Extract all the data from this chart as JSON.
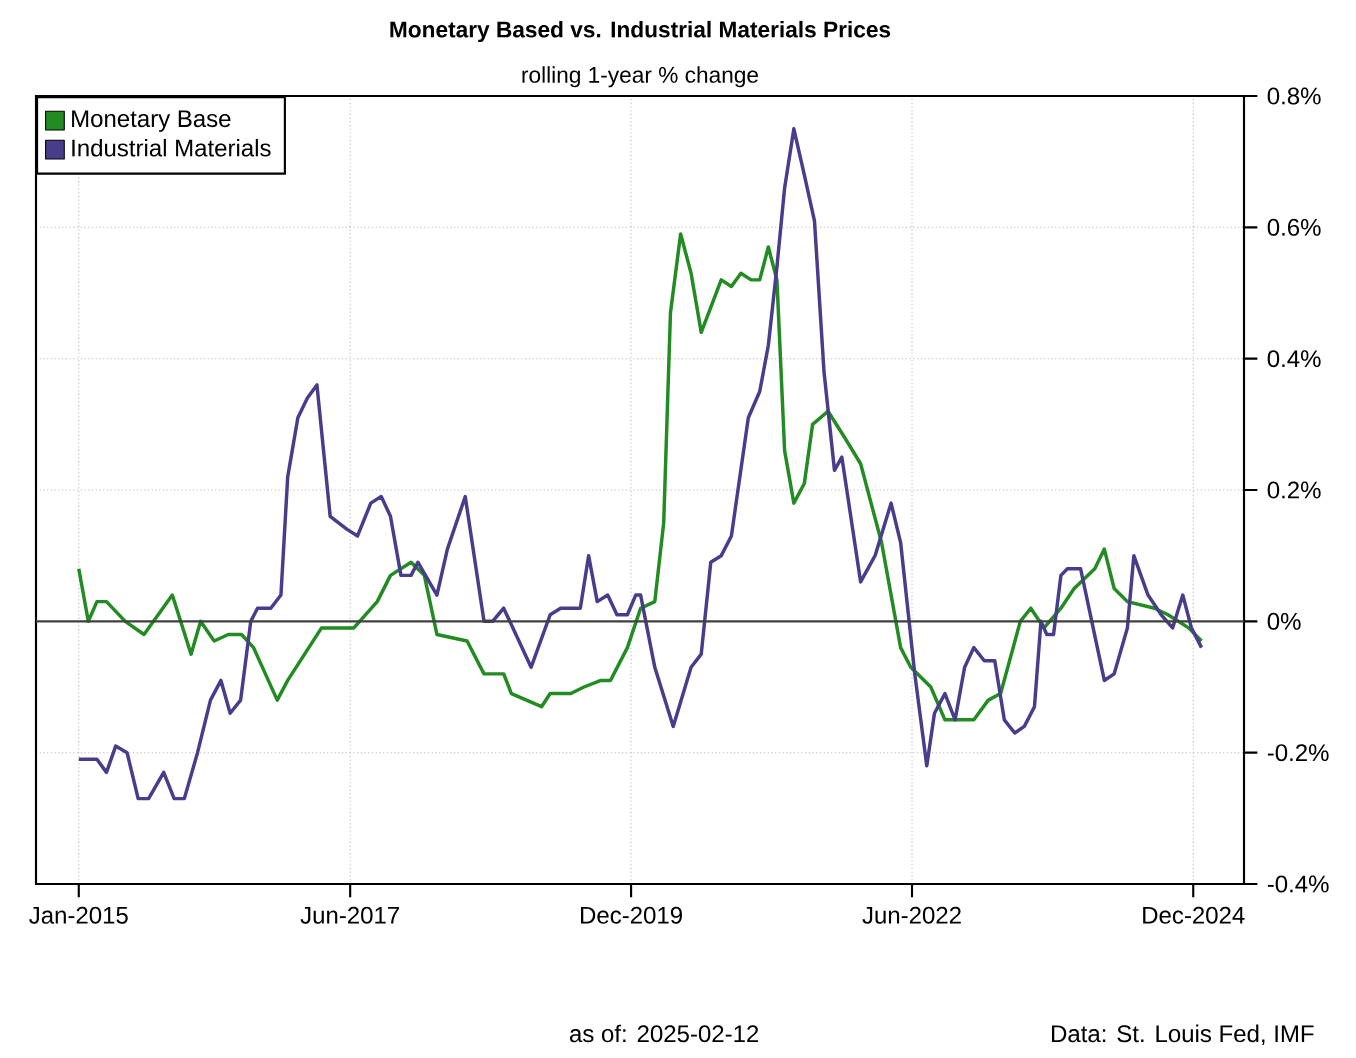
{
  "chart_data": {
    "type": "line",
    "title": "Monetary Based vs. Industrial Materials Prices",
    "subtitle": "rolling 1-year % change",
    "annotations": [
      "as of:  2025-02-12",
      "Data: St. Louis Fed, IMF"
    ],
    "xlim": [
      "2014-08-15",
      "2025-05-15"
    ],
    "xticks": [
      {
        "value": "2015-01-01",
        "label": "Jan-2015"
      },
      {
        "value": "2017-06-01",
        "label": "Jun-2017"
      },
      {
        "value": "2019-12-01",
        "label": "Dec-2019"
      },
      {
        "value": "2022-06-01",
        "label": "Jun-2022"
      },
      {
        "value": "2024-12-01",
        "label": "Dec-2024"
      }
    ],
    "ylim": [
      -0.4,
      0.8
    ],
    "yticks": [
      {
        "value": -0.4,
        "label": "-0.4%"
      },
      {
        "value": -0.2,
        "label": "-0.2%"
      },
      {
        "value": 0,
        "label": "0%"
      },
      {
        "value": 0.2,
        "label": "0.2%"
      },
      {
        "value": 0.4,
        "label": "0.4%"
      },
      {
        "value": 0.6,
        "label": "0.6%"
      },
      {
        "value": 0.8,
        "label": "0.8%"
      }
    ],
    "grid": true,
    "legend": "top left",
    "marker": "none",
    "line_style": "solid",
    "ref_lines": [
      {
        "axis": "y",
        "value": 0
      }
    ],
    "series": [
      {
        "name": "Monetary Base",
        "color": "#228b22",
        "x": [
          "2015-01-01",
          "2015-02-01",
          "2015-03-01",
          "2015-04-01",
          "2015-06-01",
          "2015-08-01",
          "2015-11-01",
          "2016-01-01",
          "2016-02-01",
          "2016-03-16",
          "2016-05-01",
          "2016-06-13",
          "2016-07-22",
          "2016-10-07",
          "2016-11-10",
          "2017-02-28",
          "2017-06-13",
          "2017-08-28",
          "2017-10-10",
          "2017-12-16",
          "2018-01-28",
          "2018-03-10",
          "2018-06-16",
          "2018-08-10",
          "2018-10-13",
          "2018-11-07",
          "2019-02-13",
          "2019-03-13",
          "2019-05-19",
          "2019-07-01",
          "2019-08-25",
          "2019-09-25",
          "2019-11-19",
          "2020-01-01",
          "2020-02-16",
          "2020-03-16",
          "2020-04-07",
          "2020-05-10",
          "2020-06-13",
          "2020-07-16",
          "2020-09-19",
          "2020-10-22",
          "2020-11-22",
          "2020-12-25",
          "2021-01-22",
          "2021-02-19",
          "2021-03-19",
          "2021-04-13",
          "2021-05-13",
          "2021-06-16",
          "2021-07-13",
          "2021-09-01",
          "2021-10-25",
          "2021-12-16",
          "2022-02-22",
          "2022-04-25",
          "2022-05-28",
          "2022-08-01",
          "2022-09-16",
          "2022-12-19",
          "2023-02-04",
          "2023-03-16",
          "2023-05-19",
          "2023-06-22",
          "2023-08-04",
          "2023-09-28",
          "2023-11-10",
          "2024-01-16",
          "2024-02-16",
          "2024-03-19",
          "2024-05-01",
          "2024-07-28",
          "2024-09-10",
          "2024-11-16",
          "2024-12-28"
        ],
        "values": [
          0.08,
          0.0,
          0.03,
          0.03,
          0.0,
          -0.02,
          0.04,
          -0.05,
          0.0,
          -0.03,
          -0.02,
          -0.02,
          -0.04,
          -0.12,
          -0.09,
          -0.01,
          -0.01,
          0.03,
          0.07,
          0.09,
          0.07,
          -0.02,
          -0.03,
          -0.08,
          -0.08,
          -0.11,
          -0.13,
          -0.11,
          -0.11,
          -0.1,
          -0.09,
          -0.09,
          -0.04,
          0.02,
          0.03,
          0.15,
          0.47,
          0.59,
          0.53,
          0.44,
          0.52,
          0.51,
          0.53,
          0.52,
          0.52,
          0.57,
          0.52,
          0.26,
          0.18,
          0.21,
          0.3,
          0.32,
          0.28,
          0.24,
          0.12,
          -0.04,
          -0.07,
          -0.1,
          -0.15,
          -0.15,
          -0.12,
          -0.11,
          0.0,
          0.02,
          -0.01,
          0.02,
          0.05,
          0.08,
          0.11,
          0.05,
          0.03,
          0.02,
          0.01,
          -0.01,
          -0.03
        ]
      },
      {
        "name": "Industrial Materials",
        "color": "#483d8b",
        "x": [
          "2015-01-01",
          "2015-03-01",
          "2015-04-01",
          "2015-05-01",
          "2015-06-07",
          "2015-07-13",
          "2015-08-16",
          "2015-10-04",
          "2015-11-07",
          "2015-12-10",
          "2016-01-22",
          "2016-03-04",
          "2016-04-07",
          "2016-05-07",
          "2016-06-10",
          "2016-07-13",
          "2016-08-04",
          "2016-09-16",
          "2016-10-19",
          "2016-11-10",
          "2016-12-13",
          "2017-01-13",
          "2017-02-13",
          "2017-03-28",
          "2017-05-22",
          "2017-06-25",
          "2017-08-07",
          "2017-09-10",
          "2017-10-10",
          "2017-11-13",
          "2017-12-16",
          "2018-01-07",
          "2018-03-10",
          "2018-04-13",
          "2018-06-10",
          "2018-08-10",
          "2018-09-07",
          "2018-10-13",
          "2019-01-10",
          "2019-03-13",
          "2019-04-16",
          "2019-06-19",
          "2019-07-16",
          "2019-08-13",
          "2019-09-16",
          "2019-10-16",
          "2019-11-19",
          "2019-12-16",
          "2020-01-01",
          "2020-02-16",
          "2020-04-16",
          "2020-06-13",
          "2020-07-16",
          "2020-08-16",
          "2020-09-19",
          "2020-10-22",
          "2020-12-16",
          "2021-01-22",
          "2021-02-19",
          "2021-03-19",
          "2021-04-13",
          "2021-05-13",
          "2021-06-16",
          "2021-07-19",
          "2021-08-19",
          "2021-09-22",
          "2021-10-16",
          "2021-12-16",
          "2022-02-01",
          "2022-03-25",
          "2022-04-25",
          "2022-06-10",
          "2022-07-19",
          "2022-08-13",
          "2022-09-16",
          "2022-10-19",
          "2022-11-19",
          "2022-12-19",
          "2023-01-22",
          "2023-02-25",
          "2023-03-28",
          "2023-05-01",
          "2023-06-01",
          "2023-07-04",
          "2023-07-25",
          "2023-08-13",
          "2023-09-04",
          "2023-09-28",
          "2023-10-19",
          "2023-12-01",
          "2024-02-16",
          "2024-03-19",
          "2024-05-01",
          "2024-05-22",
          "2024-07-07",
          "2024-08-19",
          "2024-09-25",
          "2024-10-28",
          "2024-11-25",
          "2024-12-28"
        ],
        "values": [
          -0.21,
          -0.21,
          -0.23,
          -0.19,
          -0.2,
          -0.27,
          -0.27,
          -0.23,
          -0.27,
          -0.27,
          -0.2,
          -0.12,
          -0.09,
          -0.14,
          -0.12,
          0.0,
          0.02,
          0.02,
          0.04,
          0.22,
          0.31,
          0.34,
          0.36,
          0.16,
          0.14,
          0.13,
          0.18,
          0.19,
          0.16,
          0.07,
          0.07,
          0.09,
          0.04,
          0.11,
          0.19,
          0.0,
          0.0,
          0.02,
          -0.07,
          0.01,
          0.02,
          0.02,
          0.1,
          0.03,
          0.04,
          0.01,
          0.01,
          0.04,
          0.04,
          -0.07,
          -0.16,
          -0.07,
          -0.05,
          0.09,
          0.1,
          0.13,
          0.31,
          0.35,
          0.42,
          0.54,
          0.66,
          0.75,
          0.68,
          0.61,
          0.38,
          0.23,
          0.25,
          0.06,
          0.1,
          0.18,
          0.12,
          -0.08,
          -0.22,
          -0.14,
          -0.11,
          -0.15,
          -0.07,
          -0.04,
          -0.06,
          -0.06,
          -0.15,
          -0.17,
          -0.16,
          -0.13,
          0.0,
          -0.02,
          -0.02,
          0.07,
          0.08,
          0.08,
          -0.09,
          -0.08,
          -0.01,
          0.1,
          0.04,
          0.01,
          -0.01,
          0.04,
          -0.01,
          -0.04
        ]
      }
    ]
  }
}
